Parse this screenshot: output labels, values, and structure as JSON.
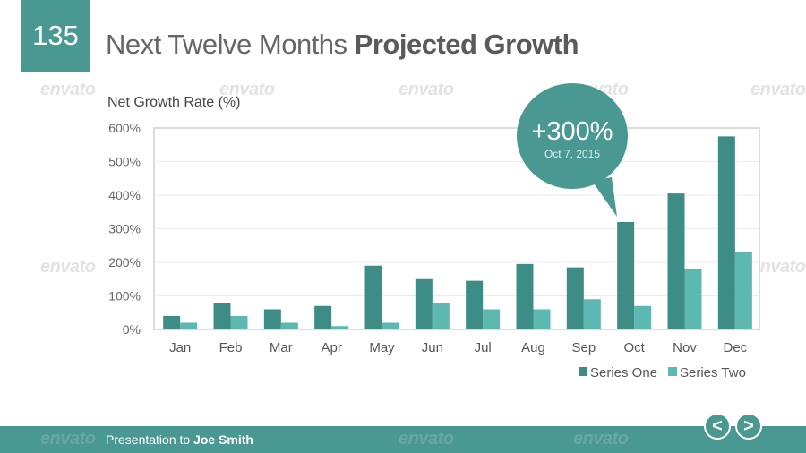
{
  "slide": {
    "number": "135",
    "title_regular": "Next Twelve Months ",
    "title_bold": "Projected Growth"
  },
  "watermark": "envato",
  "callout": {
    "value": "+300%",
    "date": "Oct 7, 2015"
  },
  "footer": {
    "prefix": "Presentation to ",
    "name": "Joe Smith"
  },
  "nav": {
    "prev": "<",
    "next": ">"
  },
  "chart_data": {
    "type": "bar",
    "ylabel": "Net Growth Rate (%)",
    "ylim": [
      0,
      600
    ],
    "yticks": [
      "0%",
      "100%",
      "200%",
      "300%",
      "400%",
      "500%",
      "600%"
    ],
    "grid": true,
    "legend_position": "bottom-right",
    "categories": [
      "Jan",
      "Feb",
      "Mar",
      "Apr",
      "May",
      "Jun",
      "Jul",
      "Aug",
      "Sep",
      "Oct",
      "Nov",
      "Dec"
    ],
    "series": [
      {
        "name": "Series One",
        "color": "#3d8c86",
        "values": [
          40,
          80,
          60,
          70,
          190,
          150,
          145,
          195,
          185,
          320,
          405,
          575
        ]
      },
      {
        "name": "Series Two",
        "color": "#5cb8b0",
        "values": [
          20,
          40,
          20,
          10,
          20,
          80,
          60,
          60,
          90,
          70,
          180,
          230
        ]
      }
    ]
  }
}
